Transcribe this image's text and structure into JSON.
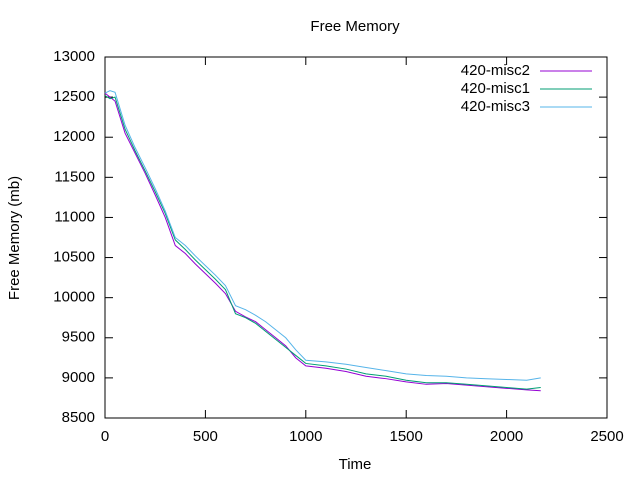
{
  "chart_data": {
    "type": "line",
    "title": "Free Memory",
    "x_label": "Time",
    "y_label": "Free Memory (mb)",
    "x": [
      0,
      25,
      50,
      100,
      150,
      200,
      250,
      300,
      350,
      400,
      450,
      500,
      550,
      600,
      650,
      700,
      750,
      800,
      850,
      900,
      950,
      1000,
      1100,
      1200,
      1300,
      1400,
      1500,
      1600,
      1700,
      1800,
      1900,
      2000,
      2100,
      2170
    ],
    "series": [
      {
        "name": "420-misc2",
        "color": "#9400d3",
        "values": [
          12550,
          12500,
          12450,
          12050,
          11800,
          11550,
          11280,
          11000,
          10650,
          10550,
          10420,
          10300,
          10180,
          10050,
          9830,
          9760,
          9700,
          9600,
          9500,
          9400,
          9250,
          9150,
          9120,
          9080,
          9020,
          8990,
          8950,
          8920,
          8930,
          8910,
          8890,
          8870,
          8850,
          8840
        ]
      },
      {
        "name": "420-misc1",
        "color": "#009e73",
        "values": [
          12520,
          12480,
          12500,
          12100,
          11830,
          11580,
          11320,
          11050,
          10720,
          10600,
          10470,
          10350,
          10230,
          10100,
          9800,
          9750,
          9680,
          9580,
          9480,
          9380,
          9280,
          9180,
          9150,
          9110,
          9050,
          9020,
          8970,
          8940,
          8940,
          8920,
          8900,
          8880,
          8860,
          8880
        ]
      },
      {
        "name": "420-misc3",
        "color": "#56b4e9",
        "values": [
          12550,
          12580,
          12560,
          12150,
          11870,
          11620,
          11360,
          11080,
          10750,
          10650,
          10520,
          10400,
          10280,
          10150,
          9900,
          9850,
          9780,
          9700,
          9600,
          9500,
          9350,
          9220,
          9200,
          9170,
          9130,
          9090,
          9050,
          9030,
          9020,
          9000,
          8990,
          8980,
          8970,
          9000
        ]
      }
    ],
    "xlim": [
      0,
      2500
    ],
    "xticks": [
      0,
      500,
      1000,
      1500,
      2000,
      2500
    ],
    "ylim": [
      8500,
      13000
    ],
    "yticks": [
      8500,
      9000,
      9500,
      10000,
      10500,
      11000,
      11500,
      12000,
      12500,
      13000
    ],
    "grid": false,
    "legend": "top-right"
  }
}
